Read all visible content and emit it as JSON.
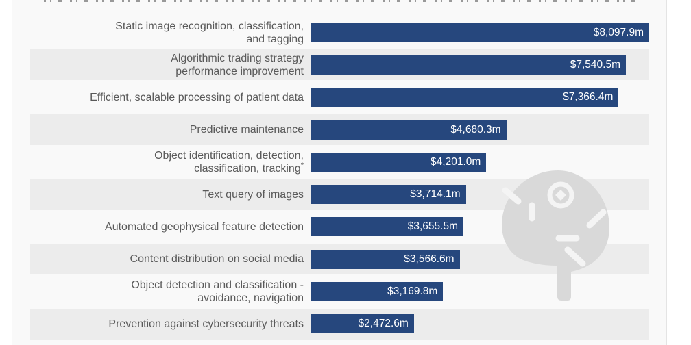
{
  "card": {
    "background": "#f9f9f9",
    "border_color": "#e4e4e4"
  },
  "chart_data": {
    "type": "bar",
    "orientation": "horizontal",
    "title_visible": "",
    "grid": false,
    "legend": false,
    "unit_suffix": "m",
    "currency_prefix": "$",
    "max_value": 8097.9,
    "categories": [
      "Static image recognition, classification,\nand tagging",
      "Algorithmic trading strategy\nperformance improvement",
      "Efficient, scalable processing of patient data",
      "Predictive maintenance",
      "Object identification, detection,\nclassification, tracking*",
      "Text query of images",
      "Automated geophysical feature detection",
      "Content distribution on social media",
      "Object detection and classification -\navoidance, navigation",
      "Prevention against cybersecurity threats"
    ],
    "values": [
      8097.9,
      7540.5,
      7366.4,
      4680.3,
      4201.0,
      3714.1,
      3655.5,
      3566.6,
      3169.8,
      2472.6
    ],
    "value_labels": [
      "$8,097.9m",
      "$7,540.5m",
      "$7,366.4m",
      "$4,680.3m",
      "$4,201.0m",
      "$3,714.1m",
      "$3,655.5m",
      "$3,566.6m",
      "$3,169.8m",
      "$2,472.6m"
    ],
    "bar_color": "#26477d",
    "value_text_color": "#ffffff",
    "label_text_color": "#595959",
    "row_stripe_color": "#ececec"
  },
  "watermark": {
    "icon": "ai-brain-icon",
    "color": "#d9d9d9"
  }
}
